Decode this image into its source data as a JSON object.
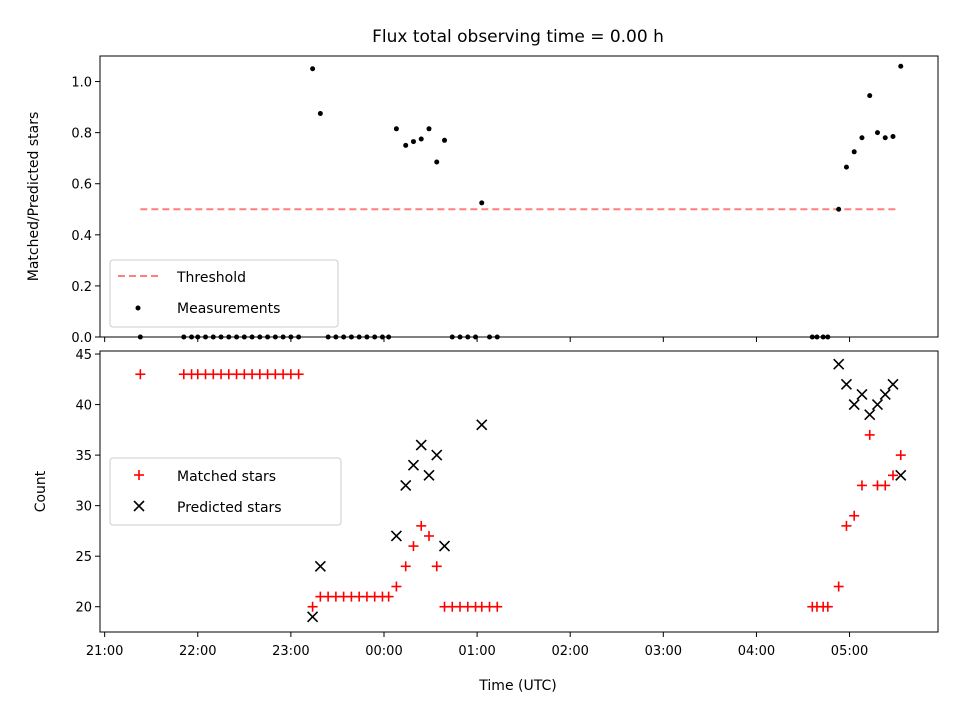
{
  "chart_data": {
    "title": "Flux total observing time = 0.00 h",
    "xlabel": "Time (UTC)",
    "x_ticks": [
      "21:00",
      "22:00",
      "23:00",
      "00:00",
      "01:00",
      "02:00",
      "03:00",
      "04:00",
      "05:00"
    ],
    "x_range": [
      "20:57",
      "05:57"
    ],
    "colors": {
      "threshold": "#ff7f7f",
      "measurements": "#000000",
      "matched": "#ff0000",
      "predicted": "#000000"
    },
    "panels": [
      {
        "type": "scatter",
        "ylabel": "Matched/Predicted stars",
        "ylim": [
          0,
          1.1
        ],
        "yticks": [
          "0.0",
          "0.2",
          "0.4",
          "0.6",
          "0.8",
          "1.0"
        ],
        "legend_position": "lower-left",
        "threshold": {
          "name": "Threshold",
          "value": 0.5,
          "x_start": "21:23",
          "x_end": "05:30"
        },
        "series": [
          {
            "name": "Measurements",
            "points": [
              [
                "21:23",
                0
              ],
              [
                "21:51",
                0
              ],
              [
                "21:56",
                0
              ],
              [
                "22:00",
                0
              ],
              [
                "22:05",
                0
              ],
              [
                "22:10",
                0
              ],
              [
                "22:15",
                0
              ],
              [
                "22:20",
                0
              ],
              [
                "22:25",
                0
              ],
              [
                "22:30",
                0
              ],
              [
                "22:35",
                0
              ],
              [
                "22:40",
                0
              ],
              [
                "22:45",
                0
              ],
              [
                "22:50",
                0
              ],
              [
                "22:55",
                0
              ],
              [
                "23:00",
                0
              ],
              [
                "23:05",
                0
              ],
              [
                "23:14",
                1.05
              ],
              [
                "23:19",
                0.875
              ],
              [
                "23:24",
                0
              ],
              [
                "23:29",
                0
              ],
              [
                "23:34",
                0
              ],
              [
                "23:39",
                0
              ],
              [
                "23:44",
                0
              ],
              [
                "23:49",
                0
              ],
              [
                "23:54",
                0
              ],
              [
                "23:59",
                0
              ],
              [
                "00:03",
                0
              ],
              [
                "00:08",
                0.815
              ],
              [
                "00:14",
                0.75
              ],
              [
                "00:19",
                0.765
              ],
              [
                "00:24",
                0.775
              ],
              [
                "00:29",
                0.815
              ],
              [
                "00:34",
                0.685
              ],
              [
                "00:39",
                0.77
              ],
              [
                "00:44",
                0
              ],
              [
                "00:49",
                0
              ],
              [
                "00:54",
                0
              ],
              [
                "00:59",
                0
              ],
              [
                "01:03",
                0.525
              ],
              [
                "01:08",
                0
              ],
              [
                "01:13",
                0
              ],
              [
                "04:36",
                0
              ],
              [
                "04:39",
                0
              ],
              [
                "04:43",
                0
              ],
              [
                "04:46",
                0
              ],
              [
                "04:53",
                0.5
              ],
              [
                "04:58",
                0.665
              ],
              [
                "05:03",
                0.725
              ],
              [
                "05:08",
                0.78
              ],
              [
                "05:13",
                0.945
              ],
              [
                "05:18",
                0.8
              ],
              [
                "05:23",
                0.78
              ],
              [
                "05:28",
                0.785
              ],
              [
                "05:33",
                1.06
              ]
            ]
          }
        ]
      },
      {
        "type": "scatter",
        "ylabel": "Count",
        "ylim": [
          17.5,
          45.3
        ],
        "yticks": [
          "20",
          "25",
          "30",
          "35",
          "40",
          "45"
        ],
        "legend_position": "center-left",
        "series": [
          {
            "name": "Matched stars",
            "marker": "plus",
            "points": [
              [
                "21:23",
                43
              ],
              [
                "21:51",
                43
              ],
              [
                "21:56",
                43
              ],
              [
                "22:00",
                43
              ],
              [
                "22:05",
                43
              ],
              [
                "22:10",
                43
              ],
              [
                "22:15",
                43
              ],
              [
                "22:20",
                43
              ],
              [
                "22:25",
                43
              ],
              [
                "22:30",
                43
              ],
              [
                "22:35",
                43
              ],
              [
                "22:40",
                43
              ],
              [
                "22:45",
                43
              ],
              [
                "22:50",
                43
              ],
              [
                "22:55",
                43
              ],
              [
                "23:00",
                43
              ],
              [
                "23:05",
                43
              ],
              [
                "23:14",
                20
              ],
              [
                "23:19",
                21
              ],
              [
                "23:24",
                21
              ],
              [
                "23:29",
                21
              ],
              [
                "23:34",
                21
              ],
              [
                "23:39",
                21
              ],
              [
                "23:44",
                21
              ],
              [
                "23:49",
                21
              ],
              [
                "23:54",
                21
              ],
              [
                "23:59",
                21
              ],
              [
                "00:03",
                21
              ],
              [
                "00:08",
                22
              ],
              [
                "00:14",
                24
              ],
              [
                "00:19",
                26
              ],
              [
                "00:24",
                28
              ],
              [
                "00:29",
                27
              ],
              [
                "00:34",
                24
              ],
              [
                "00:39",
                20
              ],
              [
                "00:44",
                20
              ],
              [
                "00:49",
                20
              ],
              [
                "00:54",
                20
              ],
              [
                "00:59",
                20
              ],
              [
                "01:03",
                20
              ],
              [
                "01:08",
                20
              ],
              [
                "01:13",
                20
              ],
              [
                "04:36",
                20
              ],
              [
                "04:39",
                20
              ],
              [
                "04:43",
                20
              ],
              [
                "04:46",
                20
              ],
              [
                "04:53",
                22
              ],
              [
                "04:58",
                28
              ],
              [
                "05:03",
                29
              ],
              [
                "05:08",
                32
              ],
              [
                "05:13",
                37
              ],
              [
                "05:18",
                32
              ],
              [
                "05:23",
                32
              ],
              [
                "05:28",
                33
              ],
              [
                "05:33",
                35
              ]
            ]
          },
          {
            "name": "Predicted stars",
            "marker": "x",
            "points": [
              [
                "23:14",
                19
              ],
              [
                "23:19",
                24
              ],
              [
                "00:08",
                27
              ],
              [
                "00:14",
                32
              ],
              [
                "00:19",
                34
              ],
              [
                "00:24",
                36
              ],
              [
                "00:29",
                33
              ],
              [
                "00:34",
                35
              ],
              [
                "00:39",
                26
              ],
              [
                "01:03",
                38
              ],
              [
                "04:53",
                44
              ],
              [
                "04:58",
                42
              ],
              [
                "05:03",
                40
              ],
              [
                "05:08",
                41
              ],
              [
                "05:13",
                39
              ],
              [
                "05:18",
                40
              ],
              [
                "05:23",
                41
              ],
              [
                "05:28",
                42
              ],
              [
                "05:33",
                33
              ]
            ]
          }
        ]
      }
    ]
  }
}
